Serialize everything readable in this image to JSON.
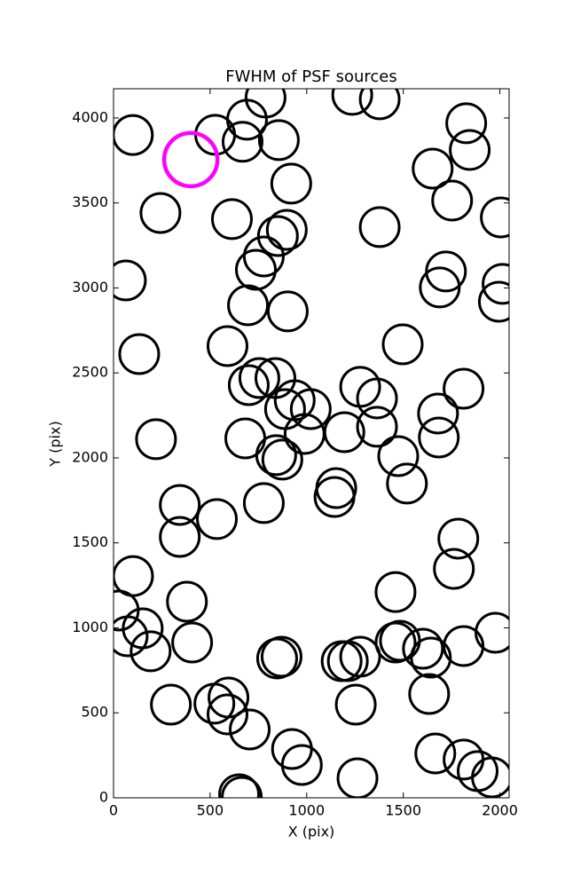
{
  "chart_data": {
    "type": "scatter",
    "title": "FWHM of PSF sources",
    "x_label": "X (pix)",
    "y_label": "Y (pix)",
    "xlim": [
      0,
      2048
    ],
    "ylim": [
      0,
      4172
    ],
    "xticks": [
      0,
      500,
      1000,
      1500,
      2000
    ],
    "yticks": [
      0,
      500,
      1000,
      1500,
      2000,
      2500,
      3000,
      3500,
      4000
    ],
    "series": [
      {
        "color": "#000000",
        "x": [
          100,
          526,
          691,
          787,
          668,
          856,
          1236,
          1378,
          1826,
          1844,
          1652,
          1753,
          2005,
          920,
          243,
          613,
          1378,
          897,
          851,
          778,
          737,
          64,
          1721,
          1689,
          2014,
          1995,
          696,
          902,
          133,
          590,
          1497,
          755,
          838,
          700,
          1277,
          1364,
          1812,
          938,
          1021,
          888,
          989,
          1195,
          1364,
          1680,
          1684,
          220,
          682,
          842,
          874,
          1474,
          1153,
          1144,
          1519,
          343,
          778,
          535,
          343,
          1785,
          1762,
          101,
          1460,
          380,
          27,
          151,
          73,
          407,
          192,
          1977,
          1812,
          1483,
          1460,
          1602,
          1643,
          847,
          870,
          1181,
          1213,
          1277,
          595,
          522,
          297,
          1254,
          1634,
          590,
          705,
          924,
          975,
          1666,
          1812,
          1885,
          1959,
          1263,
          650,
          664
        ],
        "values": [
          3900,
          3901,
          3990,
          4120,
          3860,
          3870,
          4136,
          4110,
          3969,
          3812,
          3702,
          3514,
          3415,
          3614,
          3441,
          3405,
          3358,
          3342,
          3305,
          3185,
          3107,
          3044,
          3097,
          3003,
          3024,
          2919,
          2898,
          2862,
          2611,
          2658,
          2668,
          2470,
          2470,
          2428,
          2418,
          2350,
          2407,
          2339,
          2287,
          2287,
          2141,
          2151,
          2183,
          2261,
          2120,
          2110,
          2115,
          2016,
          1990,
          2010,
          1822,
          1770,
          1849,
          1723,
          1734,
          1640,
          1535,
          1525,
          1347,
          1305,
          1211,
          1154,
          1102,
          997,
          950,
          914,
          862,
          971,
          893,
          924,
          914,
          877,
          825,
          820,
          830,
          804,
          804,
          830,
          590,
          554,
          548,
          548,
          611,
          491,
          402,
          287,
          193,
          261,
          225,
          157,
          120,
          115,
          21,
          5
        ]
      },
      {
        "color": "#ff00ff",
        "x": [
          400
        ],
        "values": [
          3755
        ]
      }
    ]
  }
}
